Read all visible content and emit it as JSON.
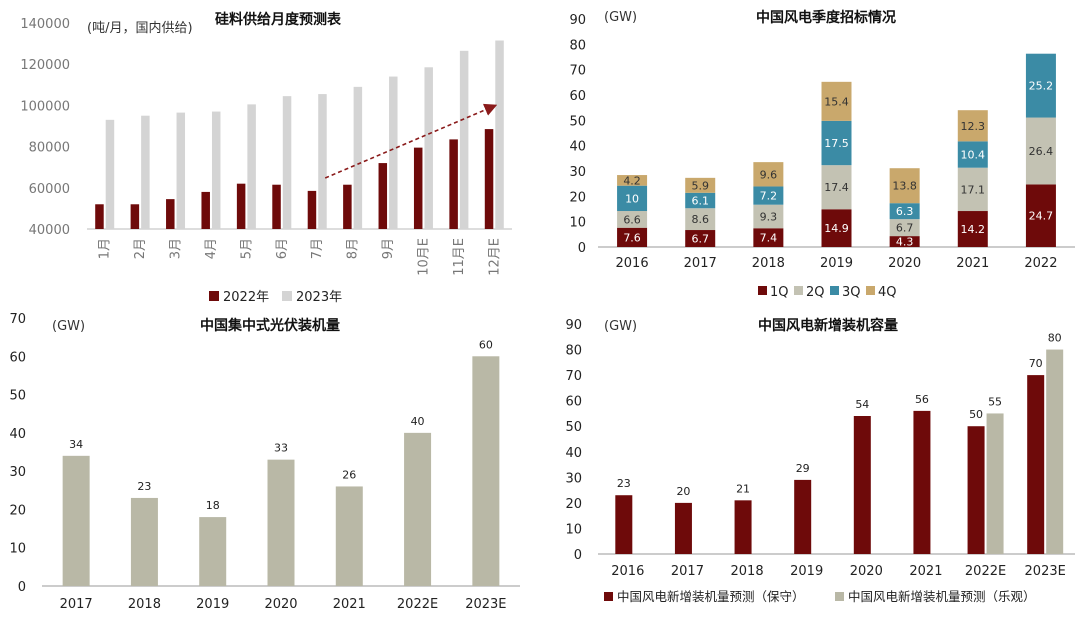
{
  "colors": {
    "dark_red": "#6e0a0a",
    "light_gray": "#d4d4d4",
    "gray": "#b9b8a6",
    "gray_stack": "#c3c2b3",
    "teal": "#3b8ba5",
    "tan": "#c9a86c",
    "arrow": "#8a1a1a"
  },
  "chart_data": [
    {
      "type": "bar",
      "title": "硅料供给月度预测表",
      "unit_label": "(吨/月，国内供给)",
      "categories": [
        "1月",
        "2月",
        "3月",
        "4月",
        "5月",
        "6月",
        "7月",
        "8月",
        "9月",
        "10月E",
        "11月E",
        "12月E"
      ],
      "series": [
        {
          "name": "2022年",
          "values": [
            52000,
            52000,
            54500,
            58000,
            62000,
            61500,
            58500,
            61500,
            72000,
            79500,
            83500,
            88500
          ]
        },
        {
          "name": "2023年",
          "values": [
            93000,
            95000,
            96500,
            97000,
            100500,
            104500,
            105500,
            109000,
            114000,
            118500,
            126500,
            131500
          ]
        }
      ],
      "ylim": [
        40000,
        140000
      ],
      "yticks": [
        40000,
        60000,
        80000,
        100000,
        120000,
        140000
      ],
      "ytick_labels": [
        "40000",
        "60000",
        "80000",
        "100000",
        "120000",
        "140000"
      ],
      "legend": "bottom",
      "annotation": "dashed arrow from 7月 to 12月E indicating upward trend"
    },
    {
      "type": "bar",
      "stacked": true,
      "title": "中国风电季度招标情况",
      "unit_label": "(GW)",
      "categories": [
        "2016",
        "2017",
        "2018",
        "2019",
        "2020",
        "2021",
        "2022"
      ],
      "series": [
        {
          "name": "1Q",
          "values": [
            7.6,
            6.7,
            7.4,
            14.9,
            4.3,
            14.2,
            24.7
          ],
          "labels": [
            "7.6",
            "6.7",
            "7.4",
            "14.9",
            "4.3",
            "14.2",
            "24.7"
          ]
        },
        {
          "name": "2Q",
          "values": [
            6.6,
            8.6,
            9.3,
            17.4,
            6.7,
            17.1,
            26.4
          ],
          "labels": [
            "6.6",
            "8.6",
            "9.3",
            "17.4",
            "6.7",
            "17.1",
            "26.4"
          ]
        },
        {
          "name": "3Q",
          "values": [
            10,
            6.1,
            7.2,
            17.5,
            6.3,
            10.4,
            25.2
          ],
          "labels": [
            "10",
            "6.1",
            "7.2",
            "17.5",
            "6.3",
            "10.4",
            "25.2"
          ]
        },
        {
          "name": "4Q",
          "values": [
            4.2,
            5.9,
            9.6,
            15.4,
            13.8,
            12.3,
            0
          ],
          "labels": [
            "4.2",
            "5.9",
            "9.6",
            "15.4",
            "13.8",
            "12.3",
            ""
          ]
        }
      ],
      "ylim": [
        0,
        90
      ],
      "yticks": [
        0,
        10,
        20,
        30,
        40,
        50,
        60,
        70,
        80,
        90
      ],
      "ytick_labels": [
        "0",
        "10",
        "20",
        "30",
        "40",
        "50",
        "60",
        "70",
        "80",
        "90"
      ],
      "legend": "bottom"
    },
    {
      "type": "bar",
      "title": "中国集中式光伏装机量",
      "unit_label": "(GW)",
      "categories": [
        "2017",
        "2018",
        "2019",
        "2020",
        "2021",
        "2022E",
        "2023E"
      ],
      "values": [
        34,
        23,
        18,
        33,
        26,
        40,
        60
      ],
      "value_labels": [
        "34",
        "23",
        "18",
        "33",
        "26",
        "40",
        "60"
      ],
      "ylim": [
        0,
        70
      ],
      "yticks": [
        0,
        10,
        20,
        30,
        40,
        50,
        60,
        70
      ],
      "ytick_labels": [
        "0",
        "10",
        "20",
        "30",
        "40",
        "50",
        "60",
        "70"
      ]
    },
    {
      "type": "bar",
      "title": "中国风电新增装机容量",
      "unit_label": "(GW)",
      "categories": [
        "2016",
        "2017",
        "2018",
        "2019",
        "2020",
        "2021",
        "2022E",
        "2023E"
      ],
      "series": [
        {
          "name": "中国风电新增装机量预测（保守）",
          "values": [
            23,
            20,
            21,
            29,
            54,
            56,
            50,
            70
          ],
          "labels": [
            "23",
            "20",
            "21",
            "29",
            "54",
            "56",
            "50",
            "70"
          ]
        },
        {
          "name": "中国风电新增装机量预测（乐观）",
          "values": [
            null,
            null,
            null,
            null,
            null,
            null,
            55,
            80
          ],
          "labels": [
            "",
            "",
            "",
            "",
            "",
            "",
            "55",
            "80"
          ]
        }
      ],
      "ylim": [
        0,
        90
      ],
      "yticks": [
        0,
        10,
        20,
        30,
        40,
        50,
        60,
        70,
        80,
        90
      ],
      "ytick_labels": [
        "0",
        "10",
        "20",
        "30",
        "40",
        "50",
        "60",
        "70",
        "80",
        "90"
      ],
      "legend": "bottom"
    }
  ]
}
